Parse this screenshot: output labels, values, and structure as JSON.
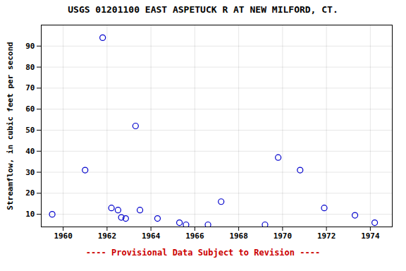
{
  "chart_data": {
    "type": "scatter",
    "title": "USGS 01201100 EAST ASPETUCK R AT NEW MILFORD, CT.",
    "ylabel": "Streamflow, in cubic feet per second",
    "x": [
      1959.5,
      1961.0,
      1961.8,
      1962.2,
      1962.5,
      1962.65,
      1962.85,
      1963.3,
      1963.5,
      1964.3,
      1965.3,
      1965.6,
      1967.2,
      1966.6,
      1969.2,
      1969.8,
      1970.8,
      1971.9,
      1973.3,
      1974.2
    ],
    "values": [
      10,
      31,
      94,
      13,
      12,
      8.5,
      8,
      52,
      12,
      8,
      6,
      5,
      16,
      5,
      5,
      37,
      31,
      13,
      9.5,
      6
    ],
    "color": "#0000cc",
    "marker": "circle",
    "xlim": [
      1959,
      1975
    ],
    "ylim": [
      4,
      100
    ],
    "xticks": [
      1960,
      1962,
      1964,
      1966,
      1968,
      1970,
      1972,
      1974
    ],
    "yticks": [
      10,
      20,
      30,
      40,
      50,
      60,
      70,
      80,
      90
    ],
    "grid": true,
    "footnote": {
      "text": "---- Provisional Data Subject to Revision ----",
      "color": "#cc0000"
    }
  }
}
